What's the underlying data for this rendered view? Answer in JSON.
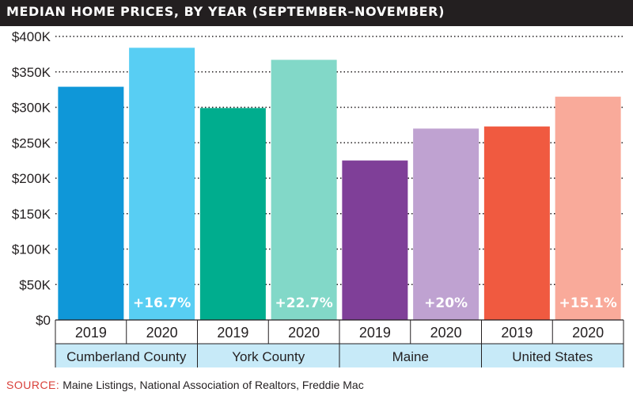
{
  "title": "MEDIAN HOME PRICES, BY YEAR (SEPTEMBER–NOVEMBER)",
  "source": {
    "label": "SOURCE:",
    "text": "Maine Listings, National Association of Realtors, Freddie Mac"
  },
  "chart_data": {
    "type": "bar",
    "title": "MEDIAN HOME PRICES, BY YEAR (SEPTEMBER–NOVEMBER)",
    "xlabel": "",
    "ylabel": "",
    "ylim": [
      0,
      400000
    ],
    "yticks": [
      0,
      50000,
      100000,
      150000,
      200000,
      250000,
      300000,
      350000,
      400000
    ],
    "ytick_labels": [
      "$0",
      "$50K",
      "$100K",
      "$150K",
      "$200K",
      "$250K",
      "$300K",
      "$350K",
      "$400K"
    ],
    "grid": true,
    "legend": "none",
    "groups": [
      {
        "name": "Cumberland County",
        "change_label": "+16.7%",
        "bars": [
          {
            "year": "2019",
            "value": 329000,
            "color": "#0f97d8"
          },
          {
            "year": "2020",
            "value": 384000,
            "color": "#58cef3"
          }
        ]
      },
      {
        "name": "York County",
        "change_label": "+22.7%",
        "bars": [
          {
            "year": "2019",
            "value": 299000,
            "color": "#00ad8e"
          },
          {
            "year": "2020",
            "value": 367000,
            "color": "#82d8c8"
          }
        ]
      },
      {
        "name": "Maine",
        "change_label": "+20%",
        "bars": [
          {
            "year": "2019",
            "value": 225000,
            "color": "#7f3f98"
          },
          {
            "year": "2020",
            "value": 270000,
            "color": "#bfa2d1"
          }
        ]
      },
      {
        "name": "United States",
        "change_label": "+15.1%",
        "bars": [
          {
            "year": "2019",
            "value": 273000,
            "color": "#f05a40"
          },
          {
            "year": "2020",
            "value": 315000,
            "color": "#f9aa9a"
          }
        ]
      }
    ]
  },
  "colors": {
    "title_bar": "#231f20",
    "group_band": "#c7eaf8",
    "grid": "#231f20",
    "source_label": "#d9403a"
  }
}
